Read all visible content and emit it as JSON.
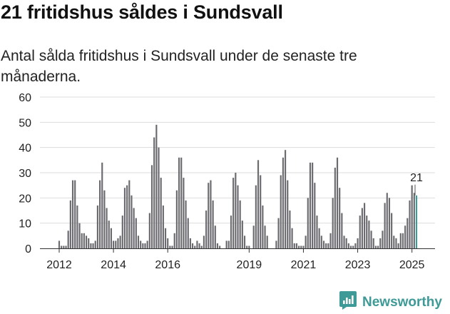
{
  "title": "21 fritidshus såldes i Sundsvall",
  "subtitle": "Antal sålda fritidshus i Sundsvall under de senaste tre månaderna.",
  "brand": {
    "name": "Newsworthy",
    "icon": "chart-speech-bubble-icon",
    "color": "#3d9a96"
  },
  "chart_data": {
    "type": "bar",
    "title": "Antal sålda fritidshus i Sundsvall under de senaste tre månaderna.",
    "xlabel": "",
    "ylabel": "",
    "ylim": [
      0,
      60
    ],
    "yticks": [
      0,
      10,
      20,
      30,
      40,
      50,
      60
    ],
    "xtick_labels": [
      "2012",
      "2014",
      "2016",
      "2019",
      "2021",
      "2023",
      "2025"
    ],
    "start_month": "2012-01",
    "grid": true,
    "bar_color": "#6b6a6f",
    "highlight_color": "#3d9a96",
    "annotation": {
      "text": "21",
      "label_for": "last"
    },
    "values": [
      3,
      1,
      1,
      1,
      7,
      19,
      27,
      27,
      17,
      10,
      6,
      6,
      5,
      4,
      2,
      2,
      3,
      17,
      27,
      34,
      23,
      16,
      11,
      8,
      3,
      3,
      4,
      5,
      13,
      24,
      25,
      27,
      21,
      16,
      12,
      5,
      3,
      2,
      2,
      3,
      14,
      33,
      44,
      49,
      40,
      28,
      17,
      8,
      4,
      1,
      1,
      6,
      23,
      36,
      36,
      28,
      19,
      12,
      4,
      2,
      1,
      3,
      2,
      1,
      5,
      15,
      26,
      27,
      19,
      9,
      2,
      1,
      0,
      0,
      3,
      3,
      13,
      28,
      30,
      25,
      19,
      11,
      5,
      1,
      1,
      0,
      9,
      25,
      35,
      29,
      17,
      9,
      5,
      0,
      0,
      0,
      3,
      12,
      29,
      36,
      39,
      27,
      15,
      8,
      2,
      2,
      1,
      1,
      1,
      5,
      20,
      34,
      34,
      26,
      13,
      8,
      5,
      3,
      2,
      2,
      6,
      20,
      32,
      36,
      24,
      14,
      5,
      4,
      2,
      1,
      1,
      2,
      4,
      13,
      16,
      18,
      13,
      11,
      7,
      4,
      1,
      1,
      4,
      7,
      18,
      22,
      20,
      14,
      5,
      4,
      2,
      6,
      6,
      9,
      12,
      19,
      25,
      22,
      21
    ]
  }
}
